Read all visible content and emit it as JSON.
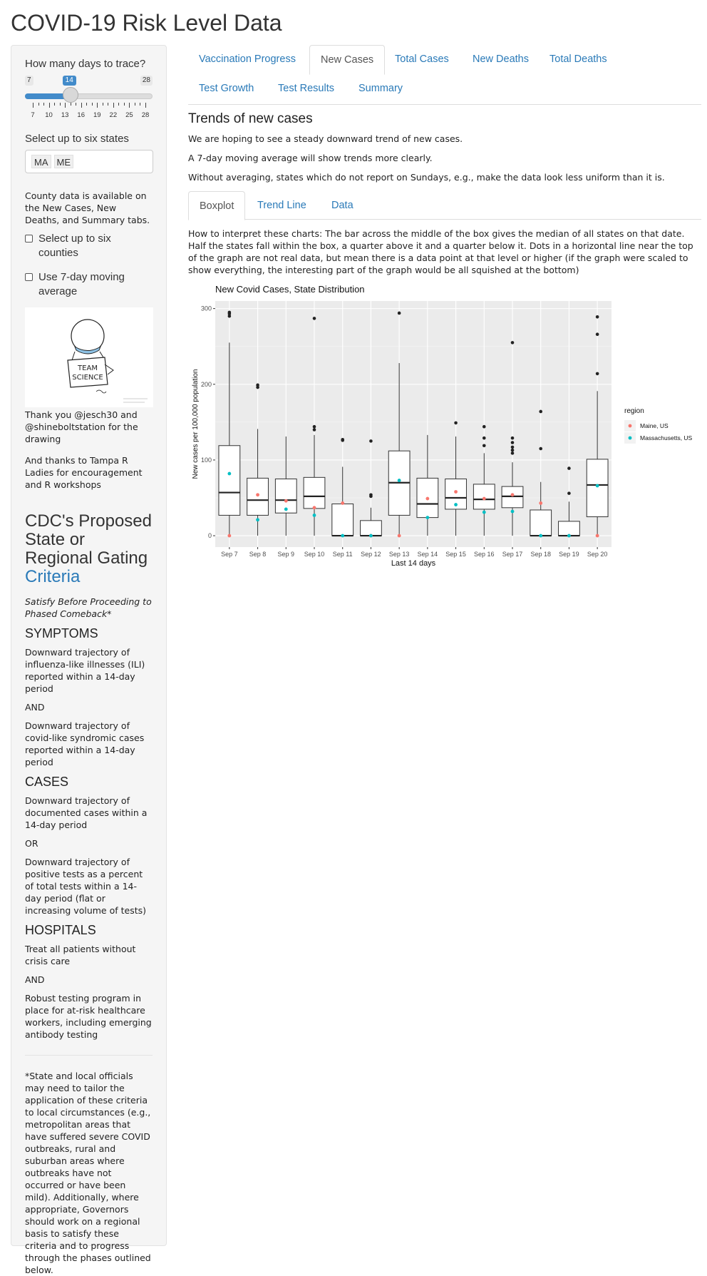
{
  "app": {
    "title": "COVID-19 Risk Level Data"
  },
  "sidebar": {
    "days_label": "How many days to trace?",
    "slider": {
      "min_label": "7",
      "max_label": "28",
      "value_label": "14",
      "value": 14,
      "min": 7,
      "max": 28,
      "tick_labels": [
        "7",
        "10",
        "13",
        "16",
        "19",
        "22",
        "25",
        "28"
      ]
    },
    "states_label": "Select up to six states",
    "states_selected": [
      "MA",
      "ME"
    ],
    "county_note": "County data is available on the New Cases, New Deaths, and Summary tabs.",
    "checkbox_counties": {
      "label": "Select up to six counties",
      "checked": false
    },
    "checkbox_moving_avg": {
      "label": "Use 7-day moving average",
      "checked": false
    },
    "drawing_text": "TEAM SCIENCE",
    "thanks_1": "Thank you @jesch30 and @shineboltstation for the drawing",
    "thanks_2": "And thanks to Tampa R Ladies for encouragement and R workshops",
    "cdc_heading_prefix": "CDC's Proposed State or Regional Gating ",
    "cdc_heading_link": "Criteria",
    "satisfy_note": "Satisfy Before Proceeding to Phased Comeback*",
    "symptoms_heading": "SYMPTOMS",
    "symptoms_1": "Downward trajectory of influenza-like illnesses (ILI) reported within a 14-day period",
    "and_1": "AND",
    "symptoms_2": "Downward trajectory of covid-like syndromic cases reported within a 14-day period",
    "cases_heading": "CASES",
    "cases_1": "Downward trajectory of documented cases within a 14-day period",
    "or_1": "OR",
    "cases_2": "Downward trajectory of positive tests as a percent of total tests within a 14-day period (flat or increasing volume of tests)",
    "hospitals_heading": "HOSPITALS",
    "hospitals_1": "Treat all patients without crisis care",
    "and_2": "AND",
    "hospitals_2": "Robust testing program in place for at-risk healthcare workers, including emerging antibody testing",
    "footnote": "*State and local officials may need to tailor the application of these criteria to local circumstances (e.g., metropolitan areas that have suffered severe COVID outbreaks, rural and suburban areas where outbreaks have not occurred or have been mild). Additionally, where appropriate, Governors should work on a regional basis to satisfy these criteria and to progress through the phases outlined below."
  },
  "tabs": [
    {
      "label": "Vaccination Progress",
      "active": false
    },
    {
      "label": "New Cases",
      "active": true
    },
    {
      "label": "Total Cases",
      "active": false
    },
    {
      "label": "New Deaths",
      "active": false
    },
    {
      "label": "Total Deaths",
      "active": false
    },
    {
      "label": "Test Growth",
      "active": false
    },
    {
      "label": "Test Results",
      "active": false
    },
    {
      "label": "Summary",
      "active": false
    }
  ],
  "content": {
    "title": "Trends of new cases",
    "p1": "We are hoping to see a steady downward trend of new cases.",
    "p2": "A 7-day moving average will show trends more clearly.",
    "p3": "Without averaging, states which do not report on Sundays, e.g., make the data look less uniform than it is.",
    "subtabs": [
      {
        "label": "Boxplot",
        "active": true
      },
      {
        "label": "Trend Line",
        "active": false
      },
      {
        "label": "Data",
        "active": false
      }
    ],
    "interpret": "How to interpret these charts: The bar across the middle of the box gives the median of all states on that date. Half the states fall within the box, a quarter above it and a quarter below it. Dots in a horizontal line near the top of the graph are not real data, but mean there is a data point at that level or higher (if the graph were scaled to show everything, the interesting part of the graph would be all squished at the bottom)"
  },
  "chart_data": {
    "type": "boxplot",
    "title": "New Covid Cases, State Distribution",
    "xlabel": "Last 14 days",
    "ylabel": "New cases per 100,000 population",
    "ylim": [
      -15,
      310
    ],
    "yticks": [
      0,
      100,
      200,
      300
    ],
    "grid": true,
    "legend_title": "region",
    "legend_position": "right",
    "categories": [
      "Sep 7",
      "Sep 8",
      "Sep 9",
      "Sep 10",
      "Sep 11",
      "Sep 12",
      "Sep 13",
      "Sep 14",
      "Sep 15",
      "Sep 16",
      "Sep 17",
      "Sep 18",
      "Sep 19",
      "Sep 20"
    ],
    "boxes": [
      {
        "q1": 27,
        "median": 57,
        "q3": 119,
        "whisker_low": 0,
        "whisker_high": 255,
        "outliers": [
          290,
          293,
          295
        ]
      },
      {
        "q1": 27,
        "median": 47,
        "q3": 76,
        "whisker_low": 0,
        "whisker_high": 141,
        "outliers": [
          196,
          199
        ]
      },
      {
        "q1": 30,
        "median": 47,
        "q3": 75,
        "whisker_low": 0,
        "whisker_high": 131,
        "outliers": []
      },
      {
        "q1": 36,
        "median": 52,
        "q3": 77,
        "whisker_low": 0,
        "whisker_high": 133,
        "outliers": [
          140,
          144,
          287
        ]
      },
      {
        "q1": 0,
        "median": 0,
        "q3": 42,
        "whisker_low": 0,
        "whisker_high": 91,
        "outliers": [
          126,
          127
        ]
      },
      {
        "q1": 0,
        "median": 0,
        "q3": 20,
        "whisker_low": 0,
        "whisker_high": 37,
        "outliers": [
          52,
          54,
          125
        ]
      },
      {
        "q1": 27,
        "median": 70,
        "q3": 112,
        "whisker_low": 0,
        "whisker_high": 228,
        "outliers": [
          294
        ]
      },
      {
        "q1": 24,
        "median": 42,
        "q3": 76,
        "whisker_low": 0,
        "whisker_high": 133,
        "outliers": []
      },
      {
        "q1": 35,
        "median": 50,
        "q3": 75,
        "whisker_low": 0,
        "whisker_high": 131,
        "outliers": [
          149
        ]
      },
      {
        "q1": 35,
        "median": 48,
        "q3": 68,
        "whisker_low": 0,
        "whisker_high": 109,
        "outliers": [
          119,
          129,
          144
        ]
      },
      {
        "q1": 37,
        "median": 52,
        "q3": 65,
        "whisker_low": 0,
        "whisker_high": 97,
        "outliers": [
          109,
          113,
          117,
          123,
          129,
          255
        ]
      },
      {
        "q1": 0,
        "median": 0,
        "q3": 34,
        "whisker_low": 0,
        "whisker_high": 71,
        "outliers": [
          115,
          164
        ]
      },
      {
        "q1": 0,
        "median": 0,
        "q3": 19,
        "whisker_low": 0,
        "whisker_high": 45,
        "outliers": [
          56,
          89
        ]
      },
      {
        "q1": 25,
        "median": 67,
        "q3": 101,
        "whisker_low": 0,
        "whisker_high": 191,
        "outliers": [
          214,
          266,
          289
        ]
      }
    ],
    "series": [
      {
        "name": "Maine, US",
        "color": "#f8766d",
        "values": [
          0,
          54,
          46,
          37,
          43,
          0,
          0,
          49,
          58,
          49,
          54,
          43,
          0,
          0
        ]
      },
      {
        "name": "Massachusetts, US",
        "color": "#00bfc4",
        "values": [
          82,
          21,
          35,
          27,
          0,
          0,
          73,
          24,
          41,
          31,
          32,
          0,
          0,
          66
        ]
      }
    ]
  }
}
